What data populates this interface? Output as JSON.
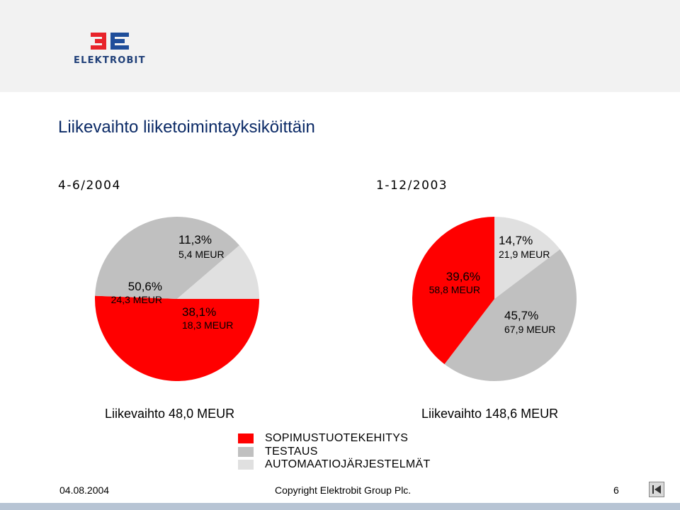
{
  "header": {
    "logo_text": "ELEKTROBIT",
    "brand_colors": {
      "red": "#e8232a",
      "blue": "#1f4e9a",
      "navy": "#1f3f78"
    }
  },
  "slide": {
    "title": "Liikevaihto liiketoimintayksiköittäin"
  },
  "chart_data": [
    {
      "type": "pie",
      "period_label": "4-6/2004",
      "total_label": "Liikevaihto 48,0 MEUR",
      "slices": [
        {
          "category": "SOPIMUSTUOTEKEHITYS",
          "percent": 50.6,
          "percent_label": "50,6%",
          "value_label": "24,3 MEUR",
          "color": "#ff0000"
        },
        {
          "category": "TESTAUS",
          "percent": 38.1,
          "percent_label": "38,1%",
          "value_label": "18,3 MEUR",
          "color": "#c0c0c0"
        },
        {
          "category": "AUTOMAATIOJÄRJESTELMÄT",
          "percent": 11.3,
          "percent_label": "11,3%",
          "value_label": "5,4 MEUR",
          "color": "#e0e0e0"
        }
      ]
    },
    {
      "type": "pie",
      "period_label": "1-12/2003",
      "total_label": "Liikevaihto 148,6 MEUR",
      "slices": [
        {
          "category": "AUTOMAATIOJÄRJESTELMÄT",
          "percent": 14.7,
          "percent_label": "14,7%",
          "value_label": "21,9 MEUR",
          "color": "#e0e0e0"
        },
        {
          "category": "TESTAUS",
          "percent": 45.7,
          "percent_label": "45,7%",
          "value_label": "67,9 MEUR",
          "color": "#c0c0c0"
        },
        {
          "category": "SOPIMUSTUOTEKEHITYS",
          "percent": 39.6,
          "percent_label": "39,6%",
          "value_label": "58,8 MEUR",
          "color": "#ff0000"
        }
      ]
    }
  ],
  "legend": [
    {
      "label": "SOPIMUSTUOTEKEHITYS",
      "color": "#ff0000"
    },
    {
      "label": "TESTAUS",
      "color": "#c0c0c0"
    },
    {
      "label": "AUTOMAATIOJÄRJESTELMÄT",
      "color": "#e0e0e0"
    }
  ],
  "footer": {
    "date": "04.08.2004",
    "copyright": "Copyright Elektrobit Group Plc.",
    "page_number": "6",
    "nav_icon": "back-to-start-icon"
  }
}
